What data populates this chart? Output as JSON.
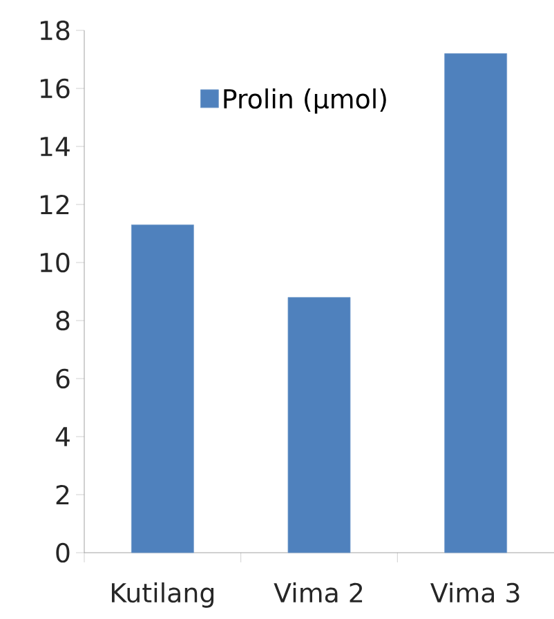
{
  "chart_data": {
    "type": "bar",
    "categories": [
      "Kutilang",
      "Vima 2",
      "Vima 3"
    ],
    "series": [
      {
        "name": "Prolin (µmol)",
        "color": "#4f81bd",
        "values": [
          11.3,
          8.8,
          17.2
        ]
      }
    ],
    "ylim": [
      0,
      18
    ],
    "yticks": [
      0,
      2,
      4,
      6,
      8,
      10,
      12,
      14,
      16,
      18
    ],
    "grid": false,
    "legend": "top"
  }
}
